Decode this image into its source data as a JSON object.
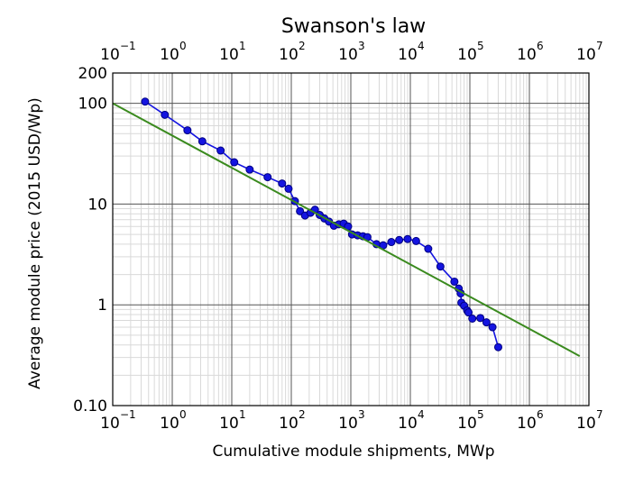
{
  "chart_data": {
    "type": "scatter",
    "title": "Swanson's law",
    "xlabel": "Cumulative module shipments, MWp",
    "ylabel": "Average module price (2015 USD/Wp)",
    "x_scale": "log",
    "y_scale": "log",
    "xlim": [
      0.1,
      10000000
    ],
    "ylim": [
      0.1,
      200
    ],
    "x_ticks": [
      {
        "base": "10",
        "exp": "−1"
      },
      {
        "base": "10",
        "exp": "0"
      },
      {
        "base": "10",
        "exp": "1"
      },
      {
        "base": "10",
        "exp": "2"
      },
      {
        "base": "10",
        "exp": "3"
      },
      {
        "base": "10",
        "exp": "4"
      },
      {
        "base": "10",
        "exp": "5"
      },
      {
        "base": "10",
        "exp": "6"
      },
      {
        "base": "10",
        "exp": "7"
      }
    ],
    "y_ticks": [
      "0.10",
      "1",
      "10",
      "100",
      "200"
    ],
    "grid": true,
    "series": [
      {
        "color": "#1414e0",
        "marker": "circle",
        "x": [
          0.35,
          0.75,
          1.8,
          3.2,
          6.5,
          11,
          20,
          40,
          70,
          90,
          115,
          140,
          170,
          210,
          250,
          300,
          360,
          430,
          520,
          630,
          760,
          900,
          1050,
          1300,
          1600,
          1900,
          2700,
          3500,
          4800,
          6500,
          9000,
          12500,
          20000,
          32000,
          55000,
          65000,
          70000,
          72000,
          80000,
          90000,
          95000,
          110000,
          150000,
          190000,
          240000,
          300000
        ],
        "y": [
          104,
          77,
          54,
          42,
          34,
          26,
          22,
          18.5,
          16,
          14.2,
          10.7,
          8.5,
          7.7,
          8.2,
          8.8,
          7.8,
          7.2,
          6.7,
          6.1,
          6.3,
          6.4,
          6.0,
          5.0,
          4.9,
          4.8,
          4.7,
          4.0,
          3.9,
          4.2,
          4.4,
          4.5,
          4.3,
          3.6,
          2.4,
          1.7,
          1.45,
          1.3,
          1.05,
          0.98,
          0.88,
          0.84,
          0.73,
          0.74,
          0.67,
          0.6,
          0.38
        ]
      },
      {
        "color": "#3a8a1e",
        "marker": "none",
        "x": [
          0.1,
          7000000
        ],
        "y": [
          100,
          0.31
        ]
      }
    ]
  }
}
